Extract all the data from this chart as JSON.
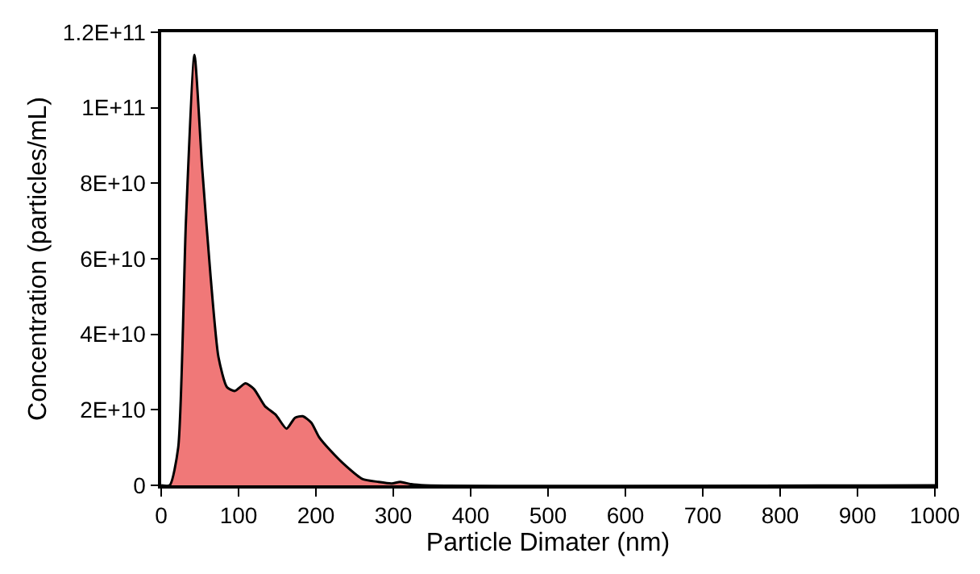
{
  "chart_data": {
    "type": "area",
    "xlabel": "Particle Dimater (nm)",
    "ylabel": "Concentration (particles/mL)",
    "x": [
      0,
      11,
      22,
      32,
      43,
      53,
      64,
      74,
      85,
      95,
      109,
      120,
      134,
      148,
      162,
      173,
      183,
      194,
      204,
      218,
      239,
      260,
      281,
      298,
      309,
      323,
      341,
      1000
    ],
    "series": [
      {
        "color": "#f07878",
        "values": [
          0,
          0,
          10000000000.0,
          70000000000.0,
          114000000000.0,
          84000000000.0,
          55000000000.0,
          34000000000.0,
          26000000000.0,
          25000000000.0,
          27000000000.0,
          25500000000.0,
          21000000000.0,
          18700000000.0,
          15000000000.0,
          17900000000.0,
          18300000000.0,
          16600000000.0,
          12800000000.0,
          9400000000.0,
          5100000000.0,
          1700000000.0,
          900000000.0,
          500000000.0,
          900000000.0,
          300000000.0,
          0,
          0
        ]
      }
    ],
    "xlim": [
      0,
      1000
    ],
    "xticks": [
      0,
      100,
      200,
      300,
      400,
      500,
      600,
      700,
      800,
      900,
      1000
    ],
    "ylim": [
      0,
      120000000000.0
    ],
    "yticks": [
      0,
      {
        "value": 20000000000.0,
        "label": "2E+10"
      },
      {
        "value": 40000000000.0,
        "label": "4E+10"
      },
      {
        "value": 60000000000.0,
        "label": "6E+10"
      },
      {
        "value": 80000000000.0,
        "label": "8E+10"
      },
      {
        "value": 100000000000.0,
        "label": "1E+11"
      },
      {
        "value": 120000000000.0,
        "label": "1.2E+11"
      }
    ]
  }
}
